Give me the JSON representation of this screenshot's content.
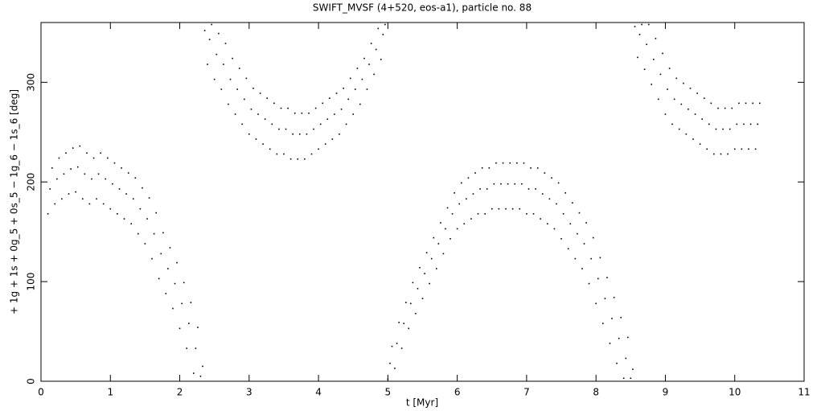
{
  "chart_data": {
    "type": "scatter",
    "title": "SWIFT_MVSF (4+520, eos-a1), particle no. 88",
    "x_label": "t [Myr]",
    "y_label": "+ 1g + 1s + 0g_5 + 0s_5 − 1g_6 − 1s_6 [deg]",
    "xlim": [
      0,
      11
    ],
    "ylim": [
      0,
      360
    ],
    "xticks": [
      0,
      1,
      2,
      3,
      4,
      5,
      6,
      7,
      8,
      9,
      10,
      11
    ],
    "yticks": [
      0,
      100,
      200,
      300
    ],
    "color": "#000000",
    "x": [
      0.1,
      0.13,
      0.16,
      0.2,
      0.23,
      0.26,
      0.3,
      0.33,
      0.36,
      0.4,
      0.43,
      0.46,
      0.5,
      0.53,
      0.56,
      0.6,
      0.63,
      0.66,
      0.7,
      0.73,
      0.76,
      0.8,
      0.83,
      0.86,
      0.9,
      0.93,
      0.96,
      1.0,
      1.03,
      1.06,
      1.1,
      1.13,
      1.16,
      1.2,
      1.23,
      1.26,
      1.3,
      1.33,
      1.36,
      1.4,
      1.43,
      1.46,
      1.5,
      1.53,
      1.56,
      1.6,
      1.63,
      1.66,
      1.7,
      1.73,
      1.76,
      1.8,
      1.83,
      1.86,
      1.9,
      1.93,
      1.96,
      2.0,
      2.03,
      2.06,
      2.1,
      2.13,
      2.16,
      2.2,
      2.23,
      2.26,
      2.3,
      2.33,
      2.36,
      2.4,
      2.43,
      2.46,
      2.5,
      2.53,
      2.56,
      2.6,
      2.63,
      2.66,
      2.7,
      2.73,
      2.76,
      2.8,
      2.83,
      2.86,
      2.9,
      2.93,
      2.96,
      3.0,
      3.03,
      3.06,
      3.1,
      3.13,
      3.16,
      3.2,
      3.23,
      3.26,
      3.3,
      3.33,
      3.36,
      3.4,
      3.43,
      3.46,
      3.5,
      3.53,
      3.56,
      3.6,
      3.63,
      3.66,
      3.7,
      3.73,
      3.76,
      3.8,
      3.83,
      3.86,
      3.9,
      3.93,
      3.96,
      4.0,
      4.03,
      4.06,
      4.1,
      4.13,
      4.16,
      4.2,
      4.23,
      4.26,
      4.3,
      4.33,
      4.36,
      4.4,
      4.43,
      4.46,
      4.5,
      4.53,
      4.56,
      4.6,
      4.63,
      4.66,
      4.7,
      4.73,
      4.76,
      4.8,
      4.83,
      4.86,
      4.9,
      4.93,
      4.96,
      5.0,
      5.03,
      5.06,
      5.1,
      5.13,
      5.16,
      5.2,
      5.23,
      5.26,
      5.3,
      5.33,
      5.36,
      5.4,
      5.43,
      5.46,
      5.5,
      5.53,
      5.56,
      5.6,
      5.63,
      5.66,
      5.7,
      5.73,
      5.76,
      5.8,
      5.83,
      5.86,
      5.9,
      5.93,
      5.96,
      6.0,
      6.03,
      6.06,
      6.1,
      6.13,
      6.16,
      6.2,
      6.23,
      6.26,
      6.3,
      6.33,
      6.36,
      6.4,
      6.43,
      6.46,
      6.5,
      6.53,
      6.56,
      6.6,
      6.63,
      6.66,
      6.7,
      6.73,
      6.76,
      6.8,
      6.83,
      6.86,
      6.9,
      6.93,
      6.96,
      7.0,
      7.03,
      7.06,
      7.1,
      7.13,
      7.16,
      7.2,
      7.23,
      7.26,
      7.3,
      7.33,
      7.36,
      7.4,
      7.43,
      7.46,
      7.5,
      7.53,
      7.56,
      7.6,
      7.63,
      7.66,
      7.7,
      7.73,
      7.76,
      7.8,
      7.83,
      7.86,
      7.9,
      7.93,
      7.96,
      8.0,
      8.03,
      8.06,
      8.1,
      8.13,
      8.16,
      8.2,
      8.23,
      8.26,
      8.3,
      8.33,
      8.36,
      8.4,
      8.43,
      8.46,
      8.5,
      8.53,
      8.56,
      8.6,
      8.63,
      8.66,
      8.7,
      8.73,
      8.76,
      8.8,
      8.83,
      8.86,
      8.9,
      8.93,
      8.96,
      9.0,
      9.03,
      9.06,
      9.1,
      9.13,
      9.16,
      9.2,
      9.23,
      9.26,
      9.3,
      9.33,
      9.36,
      9.4,
      9.43,
      9.46,
      9.5,
      9.53,
      9.56,
      9.6,
      9.63,
      9.66,
      9.7,
      9.73,
      9.76,
      9.8,
      9.83,
      9.86,
      9.9,
      9.93,
      9.96,
      10.0,
      10.03,
      10.06,
      10.1,
      10.13,
      10.16,
      10.2,
      10.23,
      10.26,
      10.3,
      10.33,
      10.36
    ],
    "values": [
      168,
      193,
      214,
      178,
      203,
      224,
      183,
      208,
      229,
      188,
      213,
      234,
      190,
      215,
      236,
      183,
      208,
      229,
      178,
      203,
      224,
      183,
      208,
      229,
      178,
      203,
      224,
      173,
      198,
      219,
      168,
      193,
      214,
      163,
      188,
      209,
      158,
      183,
      204,
      148,
      173,
      194,
      138,
      163,
      184,
      123,
      148,
      169,
      103,
      128,
      149,
      88,
      113,
      134,
      73,
      98,
      119,
      53,
      78,
      99,
      33,
      58,
      79,
      8,
      33,
      54,
      5,
      15,
      352,
      318,
      343,
      358,
      303,
      328,
      349,
      293,
      318,
      339,
      278,
      303,
      324,
      268,
      293,
      314,
      258,
      283,
      304,
      248,
      273,
      294,
      243,
      268,
      289,
      238,
      263,
      284,
      233,
      258,
      279,
      228,
      253,
      274,
      228,
      253,
      274,
      223,
      248,
      269,
      223,
      248,
      269,
      223,
      248,
      269,
      228,
      253,
      274,
      233,
      258,
      279,
      238,
      263,
      284,
      243,
      268,
      289,
      248,
      273,
      294,
      258,
      283,
      304,
      268,
      293,
      314,
      278,
      303,
      324,
      293,
      318,
      339,
      308,
      333,
      354,
      323,
      348,
      358,
      2,
      18,
      35,
      13,
      38,
      59,
      33,
      58,
      79,
      53,
      78,
      99,
      68,
      93,
      114,
      83,
      108,
      129,
      98,
      123,
      144,
      113,
      138,
      159,
      128,
      153,
      174,
      143,
      168,
      189,
      153,
      178,
      199,
      158,
      183,
      204,
      163,
      188,
      209,
      168,
      193,
      214,
      168,
      193,
      214,
      173,
      198,
      219,
      173,
      198,
      219,
      173,
      198,
      219,
      173,
      198,
      219,
      173,
      198,
      219,
      168,
      193,
      214,
      168,
      193,
      214,
      163,
      188,
      209,
      158,
      183,
      204,
      153,
      178,
      199,
      143,
      168,
      189,
      133,
      158,
      179,
      123,
      148,
      169,
      113,
      138,
      159,
      98,
      123,
      144,
      78,
      103,
      124,
      58,
      83,
      104,
      38,
      63,
      84,
      18,
      43,
      64,
      3,
      23,
      44,
      3,
      12,
      356,
      325,
      348,
      358,
      313,
      338,
      358,
      298,
      323,
      344,
      283,
      308,
      329,
      268,
      293,
      314,
      258,
      283,
      304,
      253,
      278,
      299,
      248,
      273,
      294,
      243,
      268,
      289,
      238,
      263,
      284,
      233,
      258,
      279,
      228,
      253,
      274,
      228,
      253,
      274,
      228,
      253,
      274,
      233,
      258,
      279,
      233,
      258,
      279,
      233,
      258,
      279,
      233,
      258,
      279
    ]
  }
}
